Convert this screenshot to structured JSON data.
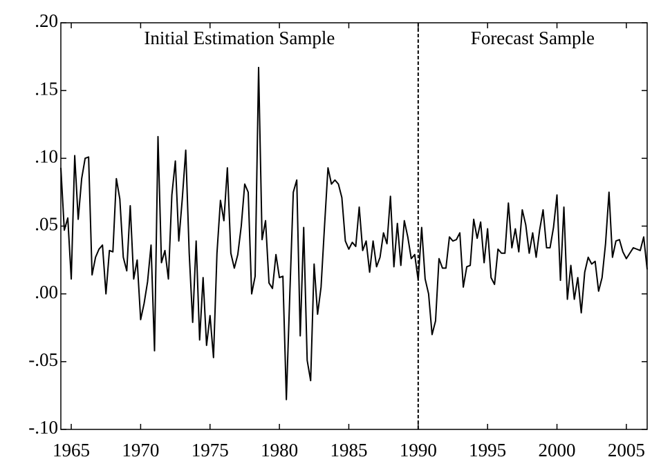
{
  "chart_data": {
    "type": "line",
    "annotations": [
      "Initial Estimation Sample",
      "Forecast Sample"
    ],
    "divider_x": 1990,
    "x": [
      1964.25,
      1964.5,
      1964.75,
      1965,
      1965.25,
      1965.5,
      1965.75,
      1966,
      1966.25,
      1966.5,
      1966.75,
      1967,
      1967.25,
      1967.5,
      1967.75,
      1968,
      1968.25,
      1968.5,
      1968.75,
      1969,
      1969.25,
      1969.5,
      1969.75,
      1970,
      1970.25,
      1970.5,
      1970.75,
      1971,
      1971.25,
      1971.5,
      1971.75,
      1972,
      1972.25,
      1972.5,
      1972.75,
      1973,
      1973.25,
      1973.5,
      1973.75,
      1974,
      1974.25,
      1974.5,
      1974.75,
      1975,
      1975.25,
      1975.5,
      1975.75,
      1976,
      1976.25,
      1976.5,
      1976.75,
      1977,
      1977.25,
      1977.5,
      1977.75,
      1978,
      1978.25,
      1978.5,
      1978.75,
      1979,
      1979.25,
      1979.5,
      1979.75,
      1980,
      1980.25,
      1980.5,
      1980.75,
      1981,
      1981.25,
      1981.5,
      1981.75,
      1982,
      1982.25,
      1982.5,
      1982.75,
      1983,
      1983.25,
      1983.5,
      1983.75,
      1984,
      1984.25,
      1984.5,
      1984.75,
      1985,
      1985.25,
      1985.5,
      1985.75,
      1986,
      1986.25,
      1986.5,
      1986.75,
      1987,
      1987.25,
      1987.5,
      1987.75,
      1988,
      1988.25,
      1988.5,
      1988.75,
      1989,
      1989.25,
      1989.5,
      1989.75,
      1990,
      1990.25,
      1990.5,
      1990.75,
      1991,
      1991.25,
      1991.5,
      1991.75,
      1992,
      1992.25,
      1992.5,
      1992.75,
      1993,
      1993.25,
      1993.5,
      1993.75,
      1994,
      1994.25,
      1994.5,
      1994.75,
      1995,
      1995.25,
      1995.5,
      1995.75,
      1996,
      1996.25,
      1996.5,
      1996.75,
      1997,
      1997.25,
      1997.5,
      1997.75,
      1998,
      1998.25,
      1998.5,
      1998.75,
      1999,
      1999.25,
      1999.5,
      1999.75,
      2000,
      2000.25,
      2000.5,
      2000.75,
      2001,
      2001.25,
      2001.5,
      2001.75,
      2002,
      2002.25,
      2002.5,
      2002.75,
      2003,
      2003.25,
      2003.5,
      2003.75,
      2004,
      2004.25,
      2004.5,
      2004.75,
      2005,
      2005.25,
      2005.5,
      2005.75,
      2006,
      2006.25,
      2006.5
    ],
    "values": [
      0.093,
      0.047,
      0.056,
      0.011,
      0.102,
      0.055,
      0.085,
      0.1,
      0.101,
      0.014,
      0.027,
      0.033,
      0.036,
      0.0,
      0.032,
      0.031,
      0.085,
      0.07,
      0.027,
      0.017,
      0.065,
      0.011,
      0.025,
      -0.019,
      -0.007,
      0.009,
      0.036,
      -0.042,
      0.116,
      0.023,
      0.032,
      0.011,
      0.073,
      0.098,
      0.039,
      0.07,
      0.106,
      0.03,
      -0.021,
      0.039,
      -0.034,
      0.012,
      -0.038,
      -0.016,
      -0.047,
      0.03,
      0.069,
      0.054,
      0.093,
      0.03,
      0.019,
      0.029,
      0.05,
      0.081,
      0.075,
      0.0,
      0.013,
      0.167,
      0.04,
      0.054,
      0.008,
      0.004,
      0.029,
      0.012,
      0.013,
      -0.078,
      0.0,
      0.075,
      0.084,
      -0.031,
      0.049,
      -0.049,
      -0.064,
      0.022,
      -0.015,
      0.005,
      0.05,
      0.093,
      0.081,
      0.084,
      0.081,
      0.071,
      0.039,
      0.033,
      0.038,
      0.035,
      0.064,
      0.032,
      0.039,
      0.016,
      0.039,
      0.02,
      0.027,
      0.045,
      0.037,
      0.072,
      0.02,
      0.052,
      0.021,
      0.054,
      0.042,
      0.026,
      0.029,
      0.01,
      0.049,
      0.011,
      0.0,
      -0.03,
      -0.02,
      0.026,
      0.019,
      0.019,
      0.042,
      0.039,
      0.04,
      0.045,
      0.005,
      0.02,
      0.021,
      0.055,
      0.041,
      0.053,
      0.023,
      0.048,
      0.012,
      0.007,
      0.033,
      0.03,
      0.03,
      0.067,
      0.034,
      0.048,
      0.031,
      0.062,
      0.051,
      0.03,
      0.045,
      0.027,
      0.047,
      0.062,
      0.034,
      0.034,
      0.049,
      0.073,
      0.01,
      0.064,
      -0.004,
      0.021,
      -0.004,
      0.012,
      -0.014,
      0.016,
      0.027,
      0.022,
      0.024,
      0.002,
      0.012,
      0.037,
      0.075,
      0.027,
      0.039,
      0.04,
      0.031,
      0.026,
      0.03,
      0.034,
      0.033,
      0.032,
      0.042,
      0.018
    ],
    "color": "#000000",
    "xlim": [
      1964.25,
      2006.5
    ],
    "xticks": [
      1965,
      1970,
      1975,
      1980,
      1985,
      1990,
      1995,
      2000,
      2005
    ],
    "ylim": [
      -0.1,
      0.2
    ],
    "yticks": [
      {
        "value": -0.1,
        "label": "-.10"
      },
      {
        "value": -0.05,
        "label": "-.05"
      },
      {
        "value": 0,
        "label": ".00"
      },
      {
        "value": 0.05,
        "label": ".05"
      },
      {
        "value": 0.1,
        "label": ".10"
      },
      {
        "value": 0.15,
        "label": ".15"
      },
      {
        "value": 0.2,
        "label": ".20"
      }
    ]
  }
}
